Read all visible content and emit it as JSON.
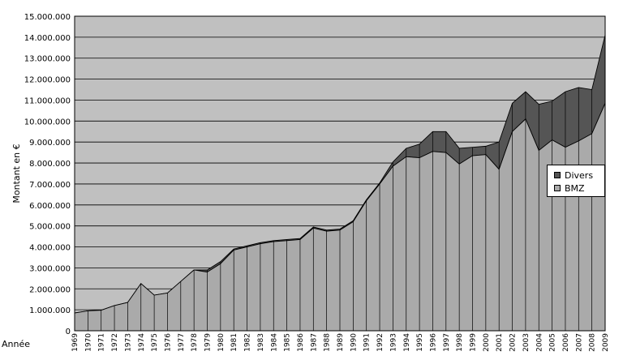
{
  "chart_data": {
    "type": "area",
    "stacked": true,
    "x": [
      "1969",
      "1970",
      "1971",
      "1972",
      "1973",
      "1974",
      "1975",
      "1976",
      "1977",
      "1978",
      "1979",
      "1980",
      "1981",
      "1982",
      "1983",
      "1984",
      "1985",
      "1986",
      "1987",
      "1988",
      "1989",
      "1990",
      "1991",
      "1992",
      "1993",
      "1994",
      "1995",
      "1996",
      "1997",
      "1998",
      "1999",
      "2000",
      "2001",
      "2002",
      "2003",
      "2004",
      "2005",
      "2006",
      "2007",
      "2008",
      "2009"
    ],
    "series": [
      {
        "name": "BMZ",
        "color": "#aaaaaa",
        "values": [
          850000,
          950000,
          980000,
          1200000,
          1350000,
          2250000,
          1700000,
          1800000,
          2350000,
          2900000,
          2800000,
          3200000,
          3850000,
          4000000,
          4150000,
          4250000,
          4300000,
          4350000,
          4900000,
          4750000,
          4800000,
          5200000,
          6200000,
          7000000,
          7850000,
          8300000,
          8250000,
          8550000,
          8500000,
          7950000,
          8350000,
          8400000,
          7700000,
          9500000,
          10100000,
          8600000,
          9100000,
          8750000,
          9050000,
          9400000,
          10850000
        ]
      },
      {
        "name": "Divers",
        "color": "#555555",
        "values": [
          0,
          0,
          0,
          0,
          0,
          0,
          0,
          0,
          0,
          0,
          100000,
          100000,
          50000,
          50000,
          50000,
          50000,
          50000,
          50000,
          50000,
          50000,
          50000,
          50000,
          50000,
          50000,
          200000,
          400000,
          650000,
          950000,
          1000000,
          750000,
          400000,
          400000,
          1300000,
          1350000,
          1300000,
          2200000,
          1850000,
          2650000,
          2550000,
          2100000,
          3250000
        ]
      }
    ],
    "ylabel": "Montant en €",
    "xlabel": "Année",
    "ylim": [
      0,
      15000000
    ],
    "yticks": [
      0,
      1000000,
      2000000,
      3000000,
      4000000,
      5000000,
      6000000,
      7000000,
      8000000,
      9000000,
      10000000,
      11000000,
      12000000,
      13000000,
      14000000,
      15000000
    ],
    "ytick_labels": [
      "0",
      "1.000.000",
      "2.000.000",
      "3.000.000",
      "4.000.000",
      "5.000.000",
      "6.000.000",
      "7.000.000",
      "8.000.000",
      "9.000.000",
      "10.000.000",
      "11.000.000",
      "12.000.000",
      "13.000.000",
      "14.000.000",
      "15.000.000"
    ],
    "grid": true,
    "legend_position": "right",
    "plot_background": "#c0c0c0"
  }
}
